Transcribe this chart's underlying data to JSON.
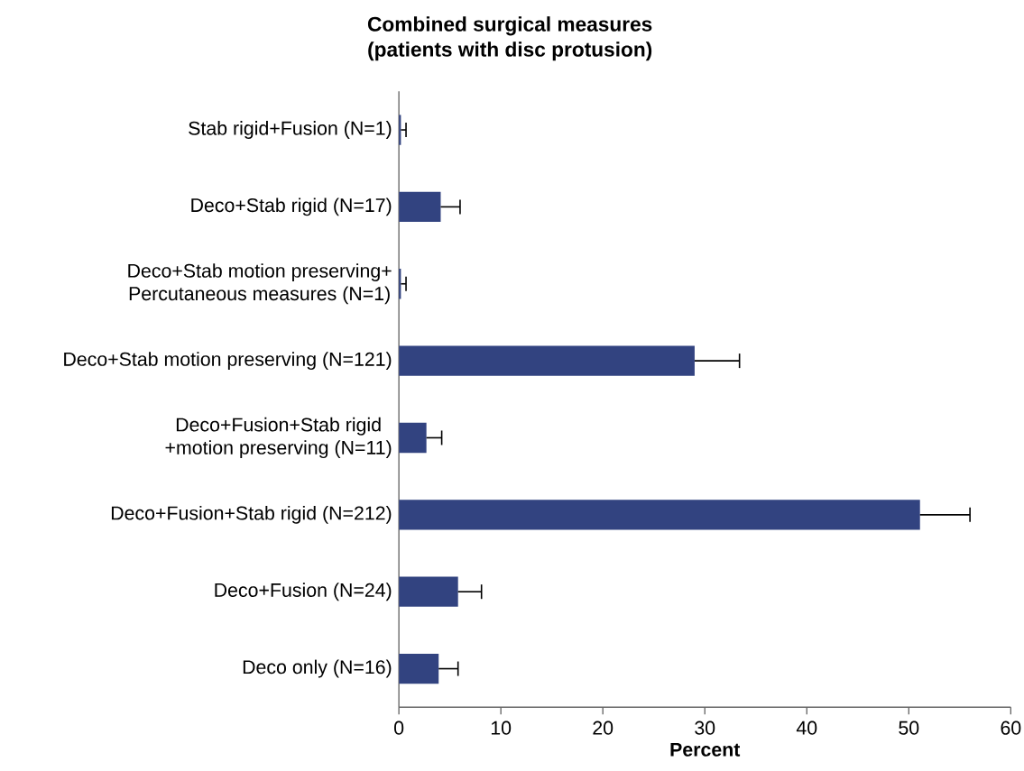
{
  "chart_data": {
    "type": "bar",
    "orientation": "horizontal",
    "title": "Combined surgical measures",
    "subtitle": "(patients with disc protusion)",
    "xlabel": "Percent",
    "categories": [
      "Stab rigid+Fusion (N=1)",
      "Deco+Stab rigid (N=17)",
      "Deco+Stab motion preserving+\nPercutaneous measures (N=1)",
      "Deco+Stab motion preserving (N=121)",
      "Deco+Fusion+Stab rigid\n+motion preserving (N=11)",
      "Deco+Fusion+Stab rigid (N=212)",
      "Deco+Fusion (N=24)",
      "Deco only (N=16)"
    ],
    "values": [
      0.2,
      4.1,
      0.2,
      29.0,
      2.7,
      51.1,
      5.8,
      3.9
    ],
    "errors": [
      [
        0.2,
        0.7
      ],
      [
        4.1,
        6.0
      ],
      [
        0.2,
        0.7
      ],
      [
        29.0,
        33.4
      ],
      [
        2.7,
        4.2
      ],
      [
        51.1,
        56.0
      ],
      [
        5.8,
        8.1
      ],
      [
        3.9,
        5.8
      ]
    ],
    "color": "#324380",
    "xlim": [
      0,
      60
    ],
    "xticks": [
      0,
      10,
      20,
      30,
      40,
      50,
      60
    ],
    "grid": false
  }
}
